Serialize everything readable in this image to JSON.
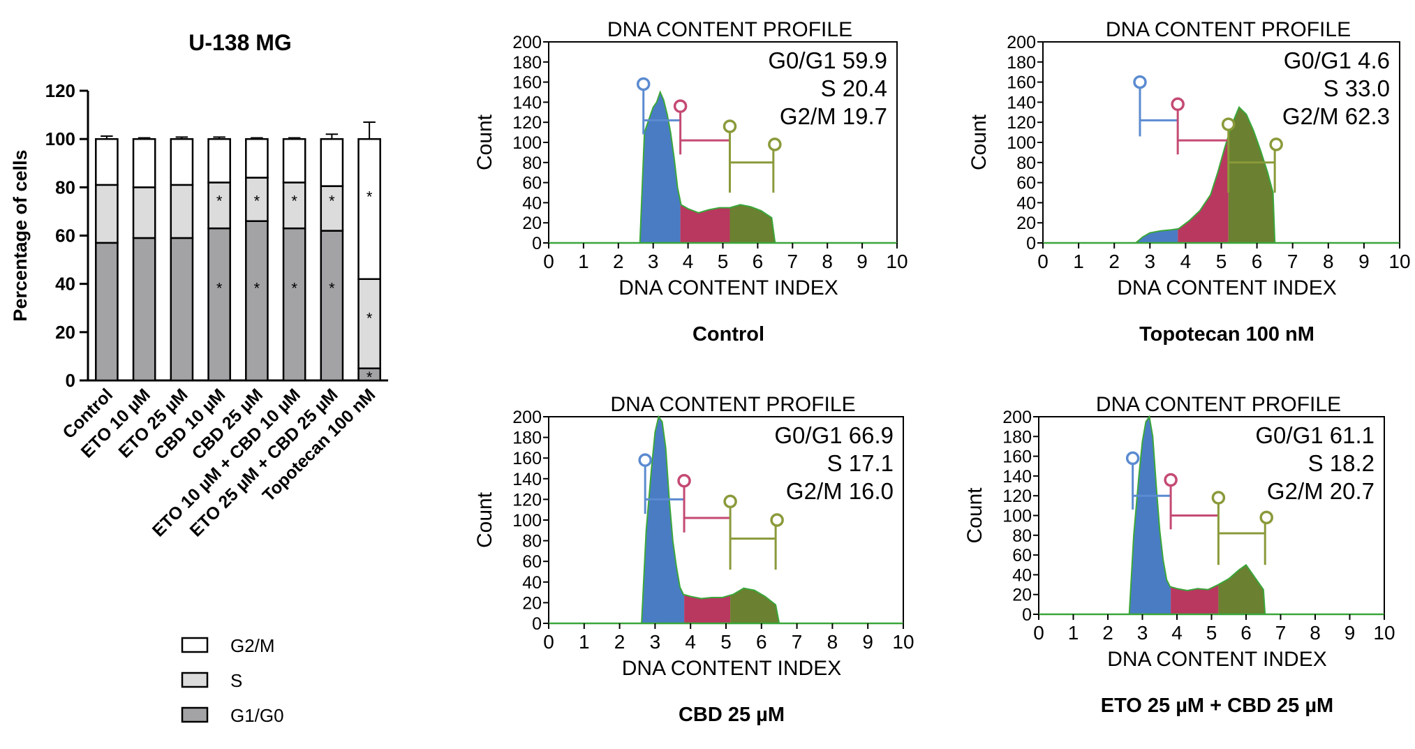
{
  "chart_data": [
    {
      "type": "bar",
      "stacked": true,
      "title": "U-138 MG",
      "ylabel": "Percentage of cells",
      "xlabel": "",
      "ylim": [
        0,
        120
      ],
      "yticks": [
        "0",
        "20",
        "40",
        "60",
        "80",
        "100",
        "120"
      ],
      "categories": [
        "Control",
        "ETO 10 µM",
        "ETO 25 µM",
        "CBD 10 µM",
        "CBD 25 µM",
        "ETO 10 µM + CBD 10 µM",
        "ETO 25 µM + CBD 25 µM",
        "Topotecan 100 nM"
      ],
      "series": [
        {
          "name": "G1/G0",
          "color": "#a3a3a6",
          "values": [
            57,
            59,
            59,
            63,
            66,
            63,
            62,
            5
          ],
          "errors": [
            0.6,
            0.8,
            1.2,
            1.5,
            1,
            1.5,
            1.5,
            1
          ]
        },
        {
          "name": "S",
          "color": "#dcdcdc",
          "values": [
            24,
            21,
            22,
            19,
            18,
            19,
            18.5,
            37
          ],
          "errors": [
            1,
            1,
            0.5,
            1,
            1.5,
            1.5,
            1,
            6.5
          ]
        },
        {
          "name": "G2/M",
          "color": "#ffffff",
          "values": [
            19,
            20,
            19,
            18,
            16,
            18,
            19.5,
            58
          ],
          "errors": [
            1.2,
            0.5,
            0.8,
            0.8,
            0.5,
            0.5,
            2,
            7
          ]
        }
      ],
      "significance_marker": "*",
      "significant": {
        "G1/G0": [
          3,
          4,
          5,
          6,
          7
        ],
        "S": [
          7
        ],
        "G2/M": [
          3,
          4,
          5,
          6,
          7
        ]
      },
      "legend": [
        "G2/M",
        "S",
        "G1/G0"
      ],
      "legend_position": "bottom"
    },
    {
      "type": "area",
      "title": "DNA CONTENT PROFILE",
      "caption": "Control",
      "xlabel": "DNA CONTENT INDEX",
      "ylabel": "Count",
      "xlim": [
        0,
        10
      ],
      "ylim": [
        0,
        200
      ],
      "xticks": [
        "0",
        "1",
        "2",
        "3",
        "4",
        "5",
        "6",
        "7",
        "8",
        "9",
        "10"
      ],
      "yticks": [
        "0",
        "20",
        "40",
        "60",
        "80",
        "100",
        "120",
        "140",
        "160",
        "180",
        "200"
      ],
      "stats": [
        {
          "label": "G0/G1 59.9"
        },
        {
          "label": "S 20.4"
        },
        {
          "label": "G2/M 19.7"
        }
      ],
      "profile": {
        "x": [
          2.62,
          2.75,
          2.9,
          3.0,
          3.1,
          3.2,
          3.3,
          3.4,
          3.5,
          3.6,
          3.7,
          3.8,
          4.0,
          4.3,
          4.6,
          4.9,
          5.2,
          5.5,
          5.8,
          6.1,
          6.4,
          6.5
        ],
        "counts": [
          0,
          110,
          125,
          135,
          140,
          150,
          142,
          128,
          110,
          85,
          55,
          38,
          34,
          30,
          33,
          35,
          35,
          38,
          36,
          32,
          25,
          0
        ]
      },
      "phase_ranges": [
        [
          2.62,
          3.78
        ],
        [
          3.78,
          5.2
        ],
        [
          5.2,
          6.5
        ]
      ],
      "gates": [
        {
          "x1": 2.72,
          "x2": 3.78,
          "y_marker": 158,
          "y_bar": 122,
          "y_bottom": 108
        },
        {
          "x1": 3.78,
          "x2": 5.2,
          "y_marker": 136,
          "y_bar": 102,
          "y_bottom": 88
        },
        {
          "x1": 5.2,
          "x2": 6.45,
          "y_marker": 116,
          "y_bar": 80,
          "y_bottom": 50
        },
        {
          "x1": 6.45,
          "x2": 6.45,
          "y_marker": 98,
          "y_bar": 80,
          "y_bottom": 50
        }
      ]
    },
    {
      "type": "area",
      "title": "DNA CONTENT PROFILE",
      "caption": "Topotecan 100 nM",
      "xlabel": "DNA CONTENT INDEX",
      "ylabel": "Count",
      "xlim": [
        0,
        10
      ],
      "ylim": [
        0,
        200
      ],
      "xticks": [
        "0",
        "1",
        "2",
        "3",
        "4",
        "5",
        "6",
        "7",
        "8",
        "9",
        "10"
      ],
      "yticks": [
        "0",
        "20",
        "40",
        "60",
        "80",
        "100",
        "120",
        "140",
        "160",
        "180",
        "200"
      ],
      "stats": [
        {
          "label": "G0/G1 4.6"
        },
        {
          "label": "S 33.0"
        },
        {
          "label": "G2/M 62.3"
        }
      ],
      "profile": {
        "x": [
          2.6,
          2.8,
          3.0,
          3.3,
          3.6,
          3.8,
          4.1,
          4.4,
          4.7,
          4.9,
          5.1,
          5.3,
          5.5,
          5.7,
          5.9,
          6.1,
          6.3,
          6.45,
          6.5
        ],
        "counts": [
          0,
          6,
          10,
          12,
          13,
          14,
          22,
          32,
          48,
          70,
          95,
          118,
          135,
          128,
          112,
          92,
          70,
          50,
          0
        ]
      },
      "phase_ranges": [
        [
          2.6,
          3.78
        ],
        [
          3.78,
          5.2
        ],
        [
          5.2,
          6.5
        ]
      ],
      "gates": [
        {
          "x1": 2.72,
          "x2": 3.78,
          "y_marker": 160,
          "y_bar": 122,
          "y_bottom": 106
        },
        {
          "x1": 3.78,
          "x2": 5.2,
          "y_marker": 138,
          "y_bar": 102,
          "y_bottom": 88
        },
        {
          "x1": 5.2,
          "x2": 6.5,
          "y_marker": 118,
          "y_bar": 80,
          "y_bottom": 50
        },
        {
          "x1": 6.5,
          "x2": 6.5,
          "y_marker": 98,
          "y_bar": 80,
          "y_bottom": 50
        }
      ]
    },
    {
      "type": "area",
      "title": "DNA CONTENT PROFILE",
      "caption": "CBD 25 µM",
      "xlabel": "DNA CONTENT INDEX",
      "ylabel": "Count",
      "xlim": [
        0,
        10
      ],
      "ylim": [
        0,
        200
      ],
      "xticks": [
        "0",
        "1",
        "2",
        "3",
        "4",
        "5",
        "6",
        "7",
        "8",
        "9",
        "10"
      ],
      "yticks": [
        "0",
        "20",
        "40",
        "60",
        "80",
        "100",
        "120",
        "140",
        "160",
        "180",
        "200"
      ],
      "stats": [
        {
          "label": "G0/G1 66.9"
        },
        {
          "label": "S 17.1"
        },
        {
          "label": "G2/M 16.0"
        }
      ],
      "profile": {
        "x": [
          2.62,
          2.75,
          2.9,
          3.0,
          3.1,
          3.2,
          3.3,
          3.4,
          3.5,
          3.6,
          3.7,
          3.8,
          4.0,
          4.3,
          4.6,
          4.9,
          5.2,
          5.5,
          5.8,
          6.1,
          6.4,
          6.5
        ],
        "counts": [
          0,
          90,
          150,
          185,
          200,
          195,
          170,
          120,
          80,
          55,
          35,
          28,
          26,
          24,
          25,
          25,
          28,
          34,
          32,
          26,
          18,
          0
        ]
      },
      "phase_ranges": [
        [
          2.62,
          3.82
        ],
        [
          3.82,
          5.12
        ],
        [
          5.12,
          6.5
        ]
      ],
      "gates": [
        {
          "x1": 2.72,
          "x2": 3.82,
          "y_marker": 158,
          "y_bar": 120,
          "y_bottom": 106
        },
        {
          "x1": 3.82,
          "x2": 5.12,
          "y_marker": 138,
          "y_bar": 102,
          "y_bottom": 88
        },
        {
          "x1": 5.12,
          "x2": 6.4,
          "y_marker": 118,
          "y_bar": 82,
          "y_bottom": 52
        },
        {
          "x1": 6.4,
          "x2": 6.4,
          "y_marker": 100,
          "y_bar": 82,
          "y_bottom": 52
        }
      ]
    },
    {
      "type": "area",
      "title": "DNA CONTENT PROFILE",
      "caption": "ETO 25 µM + CBD 25 µM",
      "xlabel": "DNA CONTENT INDEX",
      "ylabel": "Count",
      "xlim": [
        0,
        10
      ],
      "ylim": [
        0,
        200
      ],
      "xticks": [
        "0",
        "1",
        "2",
        "3",
        "4",
        "5",
        "6",
        "7",
        "8",
        "9",
        "10"
      ],
      "yticks": [
        "0",
        "20",
        "40",
        "60",
        "80",
        "100",
        "120",
        "140",
        "160",
        "180",
        "200"
      ],
      "stats": [
        {
          "label": "G0/G1 61.1"
        },
        {
          "label": "S 18.2"
        },
        {
          "label": "G2/M 20.7"
        }
      ],
      "profile": {
        "x": [
          2.62,
          2.75,
          2.9,
          3.0,
          3.1,
          3.2,
          3.3,
          3.4,
          3.5,
          3.6,
          3.7,
          3.8,
          4.0,
          4.3,
          4.6,
          4.9,
          5.2,
          5.5,
          5.8,
          6.0,
          6.2,
          6.5,
          6.55
        ],
        "counts": [
          0,
          80,
          140,
          175,
          195,
          200,
          180,
          130,
          85,
          55,
          35,
          28,
          26,
          24,
          26,
          25,
          30,
          36,
          45,
          50,
          40,
          25,
          0
        ]
      },
      "phase_ranges": [
        [
          2.62,
          3.82
        ],
        [
          3.82,
          5.2
        ],
        [
          5.2,
          6.55
        ]
      ],
      "gates": [
        {
          "x1": 2.72,
          "x2": 3.82,
          "y_marker": 158,
          "y_bar": 120,
          "y_bottom": 106
        },
        {
          "x1": 3.82,
          "x2": 5.2,
          "y_marker": 136,
          "y_bar": 100,
          "y_bottom": 86
        },
        {
          "x1": 5.2,
          "x2": 6.55,
          "y_marker": 118,
          "y_bar": 82,
          "y_bottom": 50
        },
        {
          "x1": 6.55,
          "x2": 6.55,
          "y_marker": 98,
          "y_bar": 82,
          "y_bottom": 50
        }
      ]
    }
  ],
  "colors": {
    "g0g1": "#4a7cc4",
    "s": "#b8385f",
    "g2m": "#6b8030",
    "outline": "#3aa63a",
    "gate_g0g1": "#5b8bd0",
    "gate_s": "#c44a72",
    "gate_g2m": "#8a9a3a",
    "bar_edge": "#000000"
  }
}
